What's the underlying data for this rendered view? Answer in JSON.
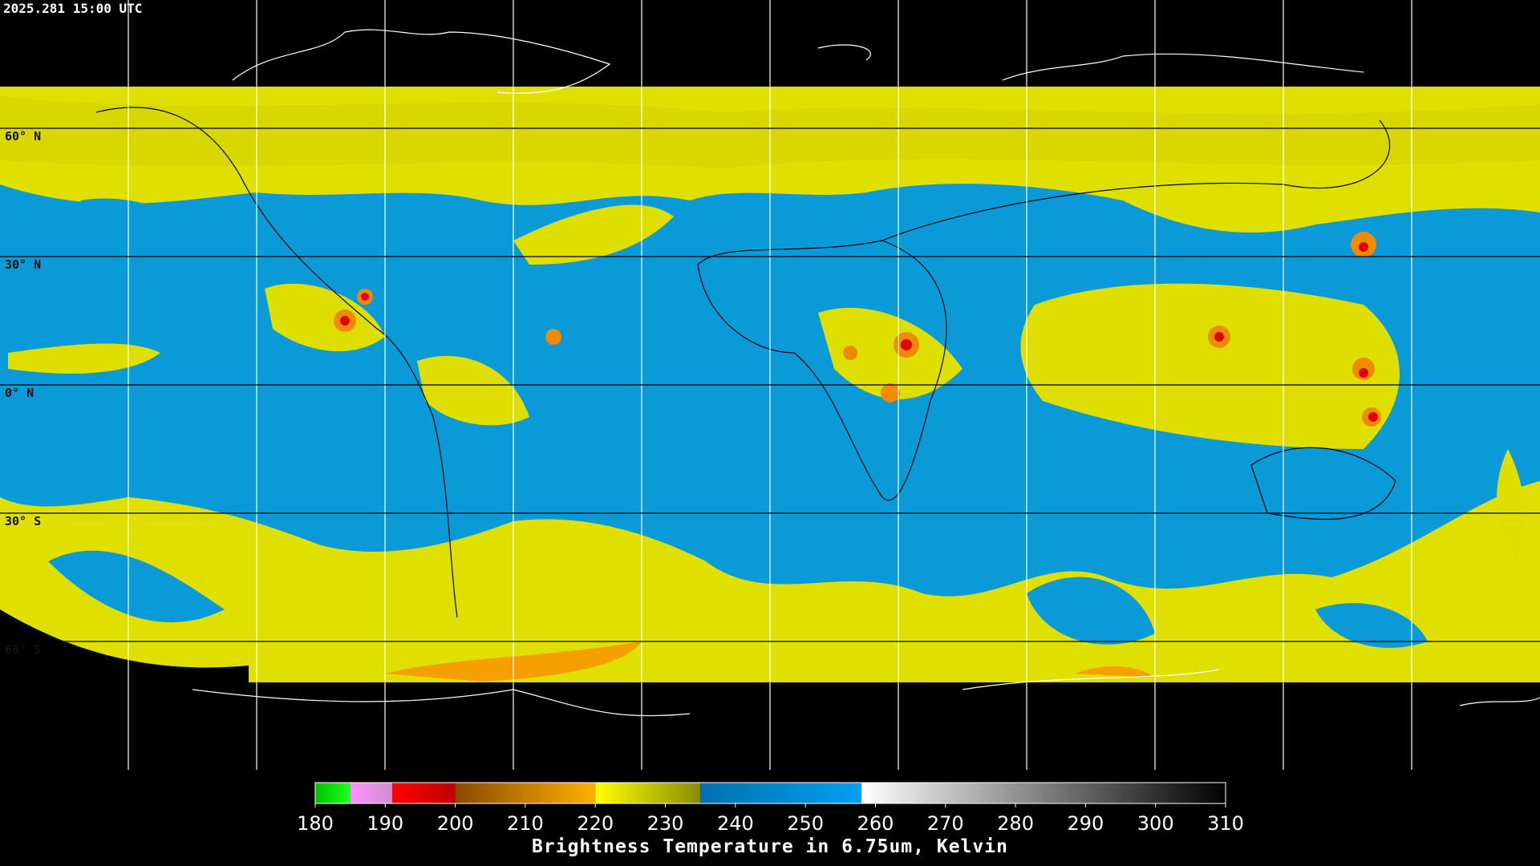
{
  "header": {
    "timestamp": "2025.281 15:00 UTC"
  },
  "map": {
    "lat_labels": [
      "60° N",
      "30° N",
      "0° N",
      "30° S",
      "60° S"
    ]
  },
  "colorbar": {
    "range": [
      180,
      310
    ],
    "ticks": [
      180,
      190,
      200,
      210,
      220,
      230,
      240,
      250,
      260,
      270,
      280,
      290,
      300,
      310
    ],
    "segments": [
      {
        "from": 180,
        "to": 185,
        "colors": [
          "#00c000",
          "#20ff20"
        ]
      },
      {
        "from": 185,
        "to": 191,
        "colors": [
          "#ff90ff",
          "#d090d0"
        ]
      },
      {
        "from": 191,
        "to": 200,
        "colors": [
          "#ff0000",
          "#c00000"
        ]
      },
      {
        "from": 200,
        "to": 220,
        "colors": [
          "#8a4a00",
          "#ffb000"
        ]
      },
      {
        "from": 220,
        "to": 235,
        "colors": [
          "#ffff00",
          "#8a8a00"
        ]
      },
      {
        "from": 235,
        "to": 258,
        "colors": [
          "#0070b0",
          "#00a0f0"
        ]
      },
      {
        "from": 258,
        "to": 310,
        "colors": [
          "#ffffff",
          "#000000"
        ]
      }
    ],
    "label": "Brightness Temperature in 6.75um, Kelvin"
  }
}
